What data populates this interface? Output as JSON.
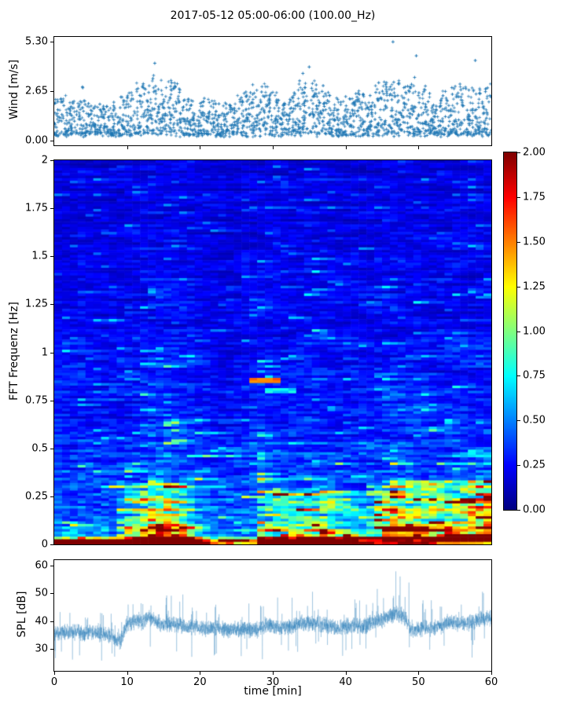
{
  "title": "2017-05-12 05:00-06:00 (100.00_Hz)",
  "colors": {
    "accent": "#1f77b4",
    "spine": "#000000",
    "background": "#ffffff",
    "text": "#000000",
    "colormap": "jet"
  },
  "chart_data": [
    {
      "id": "wind",
      "type": "scatter",
      "title": "",
      "ylabel": "Wind [m/s]",
      "yticks": [
        "0.00",
        "2.65",
        "5.30"
      ],
      "ytick_values": [
        0,
        2.65,
        5.3
      ],
      "ylim": [
        -0.265,
        5.565
      ],
      "xlim": [
        0,
        60
      ],
      "xtick_values_unlabeled": [
        10,
        20,
        30,
        40,
        50
      ],
      "marker": "+",
      "color": "#1f77b4",
      "points_per_min": 36,
      "envelope_per_min": [
        2.2,
        2.3,
        2.1,
        2.9,
        2.0,
        1.9,
        1.8,
        1.9,
        2.0,
        2.2,
        2.6,
        3.1,
        3.3,
        3.6,
        3.3,
        3.5,
        3.2,
        2.7,
        2.2,
        2.0,
        2.2,
        2.1,
        1.9,
        1.8,
        2.0,
        2.3,
        2.7,
        3.0,
        3.2,
        3.0,
        2.7,
        2.2,
        2.5,
        3.2,
        3.5,
        3.3,
        2.9,
        2.6,
        2.3,
        2.1,
        2.3,
        2.6,
        2.4,
        2.7,
        3.1,
        3.4,
        3.5,
        3.3,
        3.0,
        3.3,
        2.8,
        2.4,
        2.2,
        2.6,
        2.9,
        3.1,
        3.0,
        2.8,
        3.0,
        3.2
      ],
      "outliers": [
        [
          13.8,
          4.15
        ],
        [
          35.0,
          3.95
        ],
        [
          46.5,
          5.3
        ],
        [
          49.7,
          4.55
        ],
        [
          57.8,
          4.3
        ]
      ]
    },
    {
      "id": "spectrogram",
      "type": "heatmap",
      "ylabel": "FFT Frequenz [Hz]",
      "yticks": [
        "2",
        "1.75",
        "1.5",
        "1.25",
        "1",
        "0.75",
        "0.5",
        "0.25",
        "0"
      ],
      "ytick_values": [
        2,
        1.75,
        1.5,
        1.25,
        1,
        0.75,
        0.5,
        0.25,
        0
      ],
      "ylim": [
        0,
        2
      ],
      "xlim": [
        0,
        60
      ],
      "colormap": "jet",
      "clim": [
        0,
        2
      ],
      "cols": 56,
      "rows": 150,
      "base_profile": {
        "offset": 0.18,
        "amp": 0.42,
        "decay": 1.6
      },
      "activity": {
        "offset": 0.75,
        "wind_coupling": 0.18
      },
      "features": [
        {
          "t": [
            0,
            60
          ],
          "f": [
            0,
            0.045
          ],
          "gain": 1.8
        },
        {
          "t": [
            9,
            18
          ],
          "f": [
            0,
            0.32
          ],
          "gain": 2.0
        },
        {
          "t": [
            9,
            18
          ],
          "f": [
            0,
            0.1
          ],
          "gain": 1.4
        },
        {
          "t": [
            28,
            41
          ],
          "f": [
            0,
            0.28
          ],
          "gain": 1.8
        },
        {
          "t": [
            28,
            41
          ],
          "f": [
            0,
            0.08
          ],
          "gain": 1.4
        },
        {
          "t": [
            43,
            60
          ],
          "f": [
            0,
            0.33
          ],
          "gain": 2.0
        },
        {
          "t": [
            44,
            60
          ],
          "f": [
            0,
            0.1
          ],
          "gain": 1.5
        },
        {
          "t": [
            0,
            8
          ],
          "f": [
            0,
            0.1
          ],
          "gain": 1.35
        },
        {
          "t": [
            55,
            60
          ],
          "f": [
            0,
            0.5
          ],
          "gain": 1.3
        },
        {
          "t": [
            26.5,
            31
          ],
          "f": [
            0.838,
            0.864
          ],
          "set": 1.55
        },
        {
          "t": [
            29,
            33.5
          ],
          "f": [
            0.788,
            0.812
          ],
          "set": 0.72
        },
        {
          "t": [
            42,
            52.5
          ],
          "f": [
            0,
            0.022
          ],
          "set": 1.95
        },
        {
          "t": [
            52.5,
            60
          ],
          "f": [
            0,
            0.016
          ],
          "set": 1.5
        },
        {
          "t": [
            45,
            49.5
          ],
          "f": [
            0.042,
            0.062
          ],
          "set": 1.45
        }
      ]
    },
    {
      "id": "spl",
      "type": "line",
      "ylabel": "SPL [dB]",
      "xlabel": "time [min]",
      "yticks": [
        "30",
        "40",
        "50",
        "60"
      ],
      "ytick_values": [
        30,
        40,
        50,
        60
      ],
      "ylim": [
        22,
        62
      ],
      "xticks": [
        "0",
        "10",
        "20",
        "30",
        "40",
        "50",
        "60"
      ],
      "xtick_values": [
        0,
        10,
        20,
        30,
        40,
        50,
        60
      ],
      "xlim": [
        0,
        60
      ],
      "color": "#1f77b4",
      "mean_per_min": [
        36,
        35.5,
        36,
        36,
        35.5,
        36,
        35.5,
        35.5,
        34.5,
        32.5,
        39,
        40,
        39.5,
        41.5,
        40,
        38.5,
        39,
        38.5,
        38,
        37.5,
        37.5,
        37,
        37.5,
        37,
        36.5,
        37,
        37.5,
        37,
        37,
        38.5,
        38,
        37.5,
        38,
        38.5,
        39.5,
        39,
        39.5,
        38.5,
        38,
        37.5,
        38,
        38.5,
        38,
        38.5,
        40,
        40.5,
        42,
        42.5,
        42,
        36.5,
        37,
        37.5,
        37.5,
        38,
        39.5,
        39.5,
        39,
        39.5,
        40,
        41
      ],
      "spike_per_min": [
        9,
        8,
        8,
        8,
        8,
        13,
        8,
        8,
        8,
        7,
        10,
        11,
        10,
        16,
        14,
        12,
        14,
        13,
        10,
        9,
        9,
        8,
        9,
        8,
        8,
        9,
        9,
        8,
        8,
        11,
        10,
        9,
        9,
        10,
        10,
        11,
        13,
        9,
        9,
        8,
        9,
        10,
        9,
        10,
        12,
        13,
        15,
        15,
        14,
        8,
        9,
        9,
        9,
        10,
        14,
        13,
        12,
        14,
        13,
        12
      ]
    }
  ],
  "colorbar": {
    "ticks": [
      "2.00",
      "1.75",
      "1.50",
      "1.25",
      "1.00",
      "0.75",
      "0.50",
      "0.25",
      "0.00"
    ],
    "tick_values": [
      2,
      1.75,
      1.5,
      1.25,
      1,
      0.75,
      0.5,
      0.25,
      0
    ],
    "lim": [
      0,
      2
    ],
    "colormap": "jet"
  }
}
